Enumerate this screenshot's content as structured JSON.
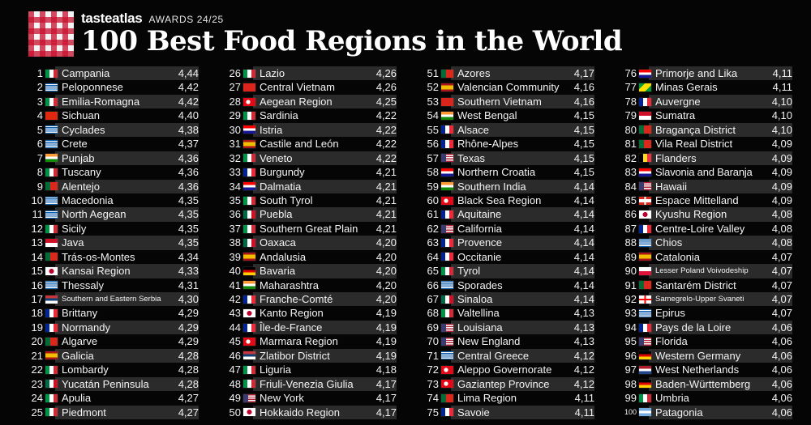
{
  "header": {
    "brand": "tasteatlas",
    "awards": "AWARDS 24/25",
    "title": "100 Best Food Regions in the World"
  },
  "flag_styles": {
    "it": "linear-gradient(90deg,#009246 33.3%,#ffffff 33.3%,#ffffff 66.6%,#ce2b37 66.6%)",
    "gr": "repeating-linear-gradient(180deg,#0d5eaf 0,#0d5eaf 1.1px,#ffffff 1.1px,#ffffff 2.2px)",
    "cn": "#de2910",
    "vn": "#da251d",
    "in": "linear-gradient(180deg,#ff9933 33.3%,#ffffff 33.3%,#ffffff 66.6%,#138808 66.6%)",
    "pt": "linear-gradient(90deg,#046a38 40%,#da291c 40%)",
    "id": "linear-gradient(180deg,#ce1126 50%,#ffffff 50%)",
    "jp": "radial-gradient(circle at 50% 50%,#bc002d 0,#bc002d 2.8px,#ffffff 3.2px)",
    "rs": "linear-gradient(180deg,#c6363c 33.3%,#0c4076 33.3%,#0c4076 66.6%,#ffffff 66.6%)",
    "fr": "linear-gradient(90deg,#002395 33.3%,#ffffff 33.3%,#ffffff 66.6%,#ed2939 66.6%)",
    "es": "linear-gradient(180deg,#aa151b 25%,#f1bf00 25%,#f1bf00 75%,#aa151b 75%)",
    "mx": "linear-gradient(90deg,#006847 33.3%,#ffffff 33.3%,#ffffff 66.6%,#ce1126 66.6%)",
    "hr": "linear-gradient(180deg,#ff0000 33.3%,#ffffff 33.3%,#ffffff 66.6%,#171796 66.6%)",
    "tr": "radial-gradient(circle at 40% 50%,#ffffff 0,#ffffff 2.4px,#e30a17 2.8px)",
    "pl": "linear-gradient(180deg,#ffffff 50%,#dc143c 50%)",
    "us": "linear-gradient(90deg,#3c3b6e 40%,rgba(0,0,0,0) 40%),repeating-linear-gradient(180deg,#b22234 0,#b22234 1.4px,#ffffff 1.4px,#ffffff 2.8px)",
    "ca": "linear-gradient(90deg,#d52b1e 25%,#ffffff 25%,#ffffff 75%,#d52b1e 75%)",
    "br": "linear-gradient(135deg,#009c3b 30%,#ffdf00 30%,#ffdf00 70%,#009c3b 70%)",
    "be": "linear-gradient(90deg,#000000 33.3%,#fdda24 33.3%,#fdda24 66.6%,#ef3340 66.6%)",
    "ch": "linear-gradient(90deg,rgba(0,0,0,0) 42%,#ffffff 42%,#ffffff 58%,rgba(0,0,0,0) 58%),linear-gradient(180deg,#da291c 30%,#ffffff 30%,#ffffff 70%,#da291c 70%)",
    "ge": "linear-gradient(90deg,rgba(0,0,0,0) 42%,#ff0000 42%,#ff0000 58%,rgba(0,0,0,0) 58%),linear-gradient(180deg,#ffffff 40%,#ff0000 40%,#ff0000 60%,#ffffff 60%)",
    "de": "linear-gradient(180deg,#000000 33.3%,#dd0000 33.3%,#dd0000 66.6%,#ffce00 66.6%)",
    "nl": "linear-gradient(180deg,#ae1c28 33.3%,#ffffff 33.3%,#ffffff 66.6%,#21468b 66.6%)",
    "ar": "linear-gradient(180deg,#74acdf 33.3%,#ffffff 33.3%,#ffffff 66.6%,#74acdf 66.6%)"
  },
  "columns": [
    [
      {
        "rank": "1",
        "flag": "it",
        "name": "Campania",
        "score": "4,44"
      },
      {
        "rank": "2",
        "flag": "gr",
        "name": "Peloponnese",
        "score": "4,42"
      },
      {
        "rank": "3",
        "flag": "it",
        "name": "Emilia-Romagna",
        "score": "4,42"
      },
      {
        "rank": "4",
        "flag": "cn",
        "name": "Sichuan",
        "score": "4,40"
      },
      {
        "rank": "5",
        "flag": "gr",
        "name": "Cyclades",
        "score": "4,38"
      },
      {
        "rank": "6",
        "flag": "gr",
        "name": "Crete",
        "score": "4,37"
      },
      {
        "rank": "7",
        "flag": "in",
        "name": "Punjab",
        "score": "4,36"
      },
      {
        "rank": "8",
        "flag": "it",
        "name": "Tuscany",
        "score": "4,36"
      },
      {
        "rank": "9",
        "flag": "pt",
        "name": "Alentejo",
        "score": "4,36"
      },
      {
        "rank": "10",
        "flag": "gr",
        "name": "Macedonia",
        "score": "4,35"
      },
      {
        "rank": "11",
        "flag": "gr",
        "name": "North Aegean",
        "score": "4,35"
      },
      {
        "rank": "12",
        "flag": "it",
        "name": "Sicily",
        "score": "4,35"
      },
      {
        "rank": "13",
        "flag": "id",
        "name": "Java",
        "score": "4,35"
      },
      {
        "rank": "14",
        "flag": "pt",
        "name": "Trás-os-Montes",
        "score": "4,34"
      },
      {
        "rank": "15",
        "flag": "jp",
        "name": "Kansai Region",
        "score": "4,33"
      },
      {
        "rank": "16",
        "flag": "gr",
        "name": "Thessaly",
        "score": "4,31"
      },
      {
        "rank": "17",
        "flag": "rs",
        "name": "Southern and Eastern Serbia",
        "score": "4,30",
        "small": true
      },
      {
        "rank": "18",
        "flag": "fr",
        "name": "Brittany",
        "score": "4,29"
      },
      {
        "rank": "19",
        "flag": "fr",
        "name": "Normandy",
        "score": "4,29"
      },
      {
        "rank": "20",
        "flag": "pt",
        "name": "Algarve",
        "score": "4,29"
      },
      {
        "rank": "21",
        "flag": "es",
        "name": "Galicia",
        "score": "4,28"
      },
      {
        "rank": "22",
        "flag": "it",
        "name": "Lombardy",
        "score": "4,28"
      },
      {
        "rank": "23",
        "flag": "mx",
        "name": "Yucatán Peninsula",
        "score": "4,28"
      },
      {
        "rank": "24",
        "flag": "it",
        "name": "Apulia",
        "score": "4,27"
      },
      {
        "rank": "25",
        "flag": "it",
        "name": "Piedmont",
        "score": "4,27"
      }
    ],
    [
      {
        "rank": "26",
        "flag": "it",
        "name": "Lazio",
        "score": "4,26"
      },
      {
        "rank": "27",
        "flag": "vn",
        "name": "Central Vietnam",
        "score": "4,26"
      },
      {
        "rank": "28",
        "flag": "tr",
        "name": "Aegean Region",
        "score": "4,25"
      },
      {
        "rank": "29",
        "flag": "it",
        "name": "Sardinia",
        "score": "4,22"
      },
      {
        "rank": "30",
        "flag": "hr",
        "name": "Istria",
        "score": "4,22"
      },
      {
        "rank": "31",
        "flag": "es",
        "name": "Castile and León",
        "score": "4,22"
      },
      {
        "rank": "32",
        "flag": "it",
        "name": "Veneto",
        "score": "4,22"
      },
      {
        "rank": "33",
        "flag": "fr",
        "name": "Burgundy",
        "score": "4,21"
      },
      {
        "rank": "34",
        "flag": "hr",
        "name": "Dalmatia",
        "score": "4,21"
      },
      {
        "rank": "35",
        "flag": "it",
        "name": "South Tyrol",
        "score": "4,21"
      },
      {
        "rank": "36",
        "flag": "mx",
        "name": "Puebla",
        "score": "4,21"
      },
      {
        "rank": "37",
        "flag": "it",
        "name": "Southern Great Plain",
        "score": "4,21"
      },
      {
        "rank": "38",
        "flag": "mx",
        "name": "Oaxaca",
        "score": "4,20"
      },
      {
        "rank": "39",
        "flag": "es",
        "name": "Andalusia",
        "score": "4,20"
      },
      {
        "rank": "40",
        "flag": "de",
        "name": "Bavaria",
        "score": "4,20"
      },
      {
        "rank": "41",
        "flag": "in",
        "name": "Maharashtra",
        "score": "4,20"
      },
      {
        "rank": "42",
        "flag": "fr",
        "name": "Franche-Comté",
        "score": "4,20"
      },
      {
        "rank": "43",
        "flag": "jp",
        "name": "Kanto Region",
        "score": "4,19"
      },
      {
        "rank": "44",
        "flag": "fr",
        "name": "Île-de-France",
        "score": "4,19"
      },
      {
        "rank": "45",
        "flag": "tr",
        "name": "Marmara Region",
        "score": "4,19"
      },
      {
        "rank": "46",
        "flag": "rs",
        "name": "Zlatibor District",
        "score": "4,19"
      },
      {
        "rank": "47",
        "flag": "it",
        "name": "Liguria",
        "score": "4,18"
      },
      {
        "rank": "48",
        "flag": "it",
        "name": "Friuli-Venezia Giulia",
        "score": "4,17"
      },
      {
        "rank": "49",
        "flag": "us",
        "name": "New York",
        "score": "4,17"
      },
      {
        "rank": "50",
        "flag": "jp",
        "name": "Hokkaido Region",
        "score": "4,17"
      }
    ],
    [
      {
        "rank": "51",
        "flag": "pt",
        "name": "Azores",
        "score": "4,17"
      },
      {
        "rank": "52",
        "flag": "es",
        "name": "Valencian Community",
        "score": "4,16"
      },
      {
        "rank": "53",
        "flag": "vn",
        "name": "Southern Vietnam",
        "score": "4,16"
      },
      {
        "rank": "54",
        "flag": "in",
        "name": "West Bengal",
        "score": "4,15"
      },
      {
        "rank": "55",
        "flag": "fr",
        "name": "Alsace",
        "score": "4,15"
      },
      {
        "rank": "56",
        "flag": "fr",
        "name": "Rhône-Alpes",
        "score": "4,15"
      },
      {
        "rank": "57",
        "flag": "us",
        "name": "Texas",
        "score": "4,15"
      },
      {
        "rank": "58",
        "flag": "hr",
        "name": "Northern Croatia",
        "score": "4,15"
      },
      {
        "rank": "59",
        "flag": "in",
        "name": "Southern India",
        "score": "4,14"
      },
      {
        "rank": "60",
        "flag": "tr",
        "name": "Black Sea Region",
        "score": "4,14"
      },
      {
        "rank": "61",
        "flag": "fr",
        "name": "Aquitaine",
        "score": "4,14"
      },
      {
        "rank": "62",
        "flag": "us",
        "name": "California",
        "score": "4,14"
      },
      {
        "rank": "63",
        "flag": "fr",
        "name": "Provence",
        "score": "4,14"
      },
      {
        "rank": "64",
        "flag": "fr",
        "name": "Occitanie",
        "score": "4,14"
      },
      {
        "rank": "65",
        "flag": "it",
        "name": "Tyrol",
        "score": "4,14"
      },
      {
        "rank": "66",
        "flag": "gr",
        "name": "Sporades",
        "score": "4,14"
      },
      {
        "rank": "67",
        "flag": "mx",
        "name": "Sinaloa",
        "score": "4,14"
      },
      {
        "rank": "68",
        "flag": "it",
        "name": "Valtellina",
        "score": "4,13"
      },
      {
        "rank": "69",
        "flag": "us",
        "name": "Louisiana",
        "score": "4,13"
      },
      {
        "rank": "70",
        "flag": "us",
        "name": "New England",
        "score": "4,13"
      },
      {
        "rank": "71",
        "flag": "gr",
        "name": "Central Greece",
        "score": "4,12"
      },
      {
        "rank": "72",
        "flag": "tr",
        "name": "Aleppo Governorate",
        "score": "4,12"
      },
      {
        "rank": "73",
        "flag": "tr",
        "name": "Gaziantep Province",
        "score": "4,12"
      },
      {
        "rank": "74",
        "flag": "pt",
        "name": "Lima Region",
        "score": "4,11"
      },
      {
        "rank": "75",
        "flag": "fr",
        "name": "Savoie",
        "score": "4,11"
      }
    ],
    [
      {
        "rank": "76",
        "flag": "hr",
        "name": "Primorje and Lika",
        "score": "4,11"
      },
      {
        "rank": "77",
        "flag": "br",
        "name": "Minas Gerais",
        "score": "4,11"
      },
      {
        "rank": "78",
        "flag": "fr",
        "name": "Auvergne",
        "score": "4,10"
      },
      {
        "rank": "79",
        "flag": "id",
        "name": "Sumatra",
        "score": "4,10"
      },
      {
        "rank": "80",
        "flag": "pt",
        "name": "Bragança District",
        "score": "4,10"
      },
      {
        "rank": "81",
        "flag": "pt",
        "name": "Vila Real District",
        "score": "4,09"
      },
      {
        "rank": "82",
        "flag": "be",
        "name": "Flanders",
        "score": "4,09"
      },
      {
        "rank": "83",
        "flag": "hr",
        "name": "Slavonia and Baranja",
        "score": "4,09",
        "tight": true
      },
      {
        "rank": "84",
        "flag": "us",
        "name": "Hawaii",
        "score": "4,09"
      },
      {
        "rank": "85",
        "flag": "ch",
        "name": "Espace Mittelland",
        "score": "4,09"
      },
      {
        "rank": "86",
        "flag": "jp",
        "name": "Kyushu Region",
        "score": "4,08"
      },
      {
        "rank": "87",
        "flag": "fr",
        "name": "Centre-Loire Valley",
        "score": "4,08"
      },
      {
        "rank": "88",
        "flag": "gr",
        "name": "Chios",
        "score": "4,08"
      },
      {
        "rank": "89",
        "flag": "es",
        "name": "Catalonia",
        "score": "4,07"
      },
      {
        "rank": "90",
        "flag": "pl",
        "name": "Lesser Poland Voivodeship",
        "score": "4,07",
        "small": true
      },
      {
        "rank": "91",
        "flag": "pt",
        "name": "Santarém District",
        "score": "4,07"
      },
      {
        "rank": "92",
        "flag": "ge",
        "name": "Samegrelo-Upper Svaneti",
        "score": "4,07",
        "small": true
      },
      {
        "rank": "93",
        "flag": "gr",
        "name": "Epirus",
        "score": "4,07"
      },
      {
        "rank": "94",
        "flag": "fr",
        "name": "Pays de la Loire",
        "score": "4,06"
      },
      {
        "rank": "95",
        "flag": "us",
        "name": "Florida",
        "score": "4,06"
      },
      {
        "rank": "96",
        "flag": "de",
        "name": "Western Germany",
        "score": "4,06"
      },
      {
        "rank": "97",
        "flag": "nl",
        "name": "West Netherlands",
        "score": "4,06"
      },
      {
        "rank": "98",
        "flag": "de",
        "name": "Baden-Württemberg",
        "score": "4,06"
      },
      {
        "rank": "99",
        "flag": "it",
        "name": "Umbria",
        "score": "4,06"
      },
      {
        "rank": "100",
        "flag": "ar",
        "name": "Patagonia",
        "score": "4,06",
        "smallRank": true
      }
    ]
  ]
}
